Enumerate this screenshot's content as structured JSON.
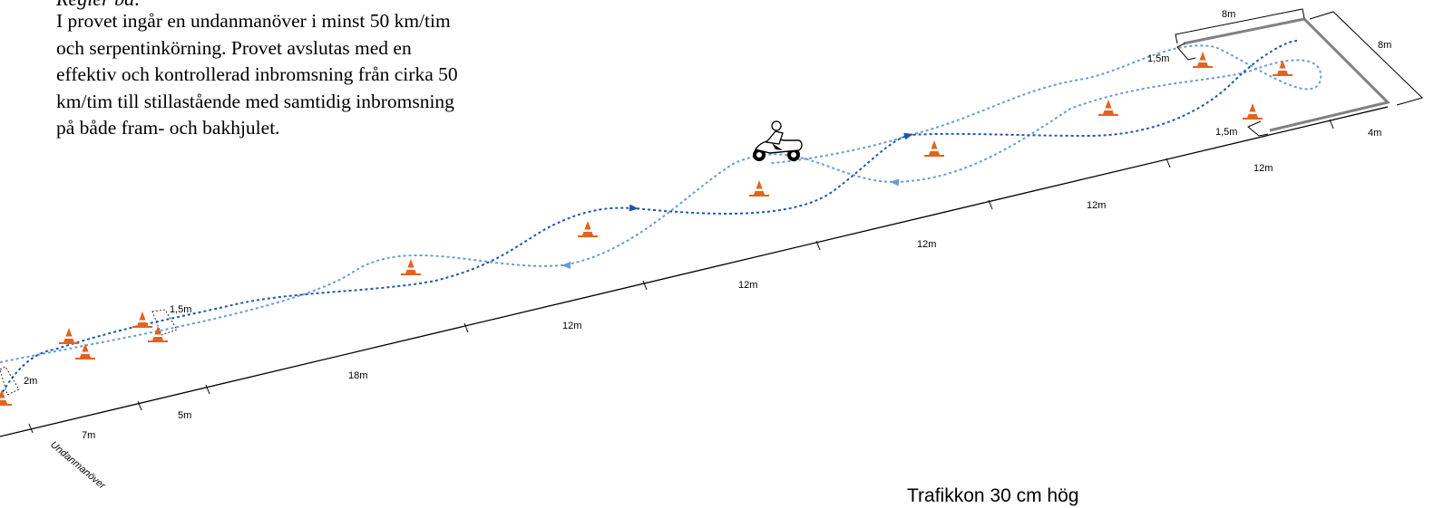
{
  "text": {
    "heading": "Regler ba:",
    "description": "I provet ingår en undanmanöver i minst 50 km/tim och serpentinkörning. Provet avslutas med en effektiv och kontrollerad inbromsning från cirka 50 km/tim till stillastående med samtidig inbromsning på både fram- och bakhjulet.",
    "caption": "Trafikkon 30 cm hög",
    "evasion_label": "Undanmanöver"
  },
  "measurements": {
    "m_7": "7m",
    "m_5": "5m",
    "m_18": "18m",
    "m_12a": "12m",
    "m_12b": "12m",
    "m_12c": "12m",
    "m_12d": "12m",
    "m_12e": "12m",
    "m_4": "4m",
    "m_8_top": "8m",
    "m_8_side": "8m",
    "m_1_5_top": "1,5m",
    "m_1_5_bottom": "1,5m",
    "m_1_5_gate": "1,5m",
    "m_2": "2m"
  },
  "colors": {
    "cone": "#e2631f",
    "cone_stripe": "#ffffff",
    "route_dark": "#1f57a8",
    "route_light": "#6b9bd3",
    "baseline": "#000000",
    "box": "#808080"
  },
  "icons": {
    "cone": "traffic-cone-icon",
    "rider": "motorcycle-rider-icon",
    "arrow": "route-arrow-icon"
  }
}
